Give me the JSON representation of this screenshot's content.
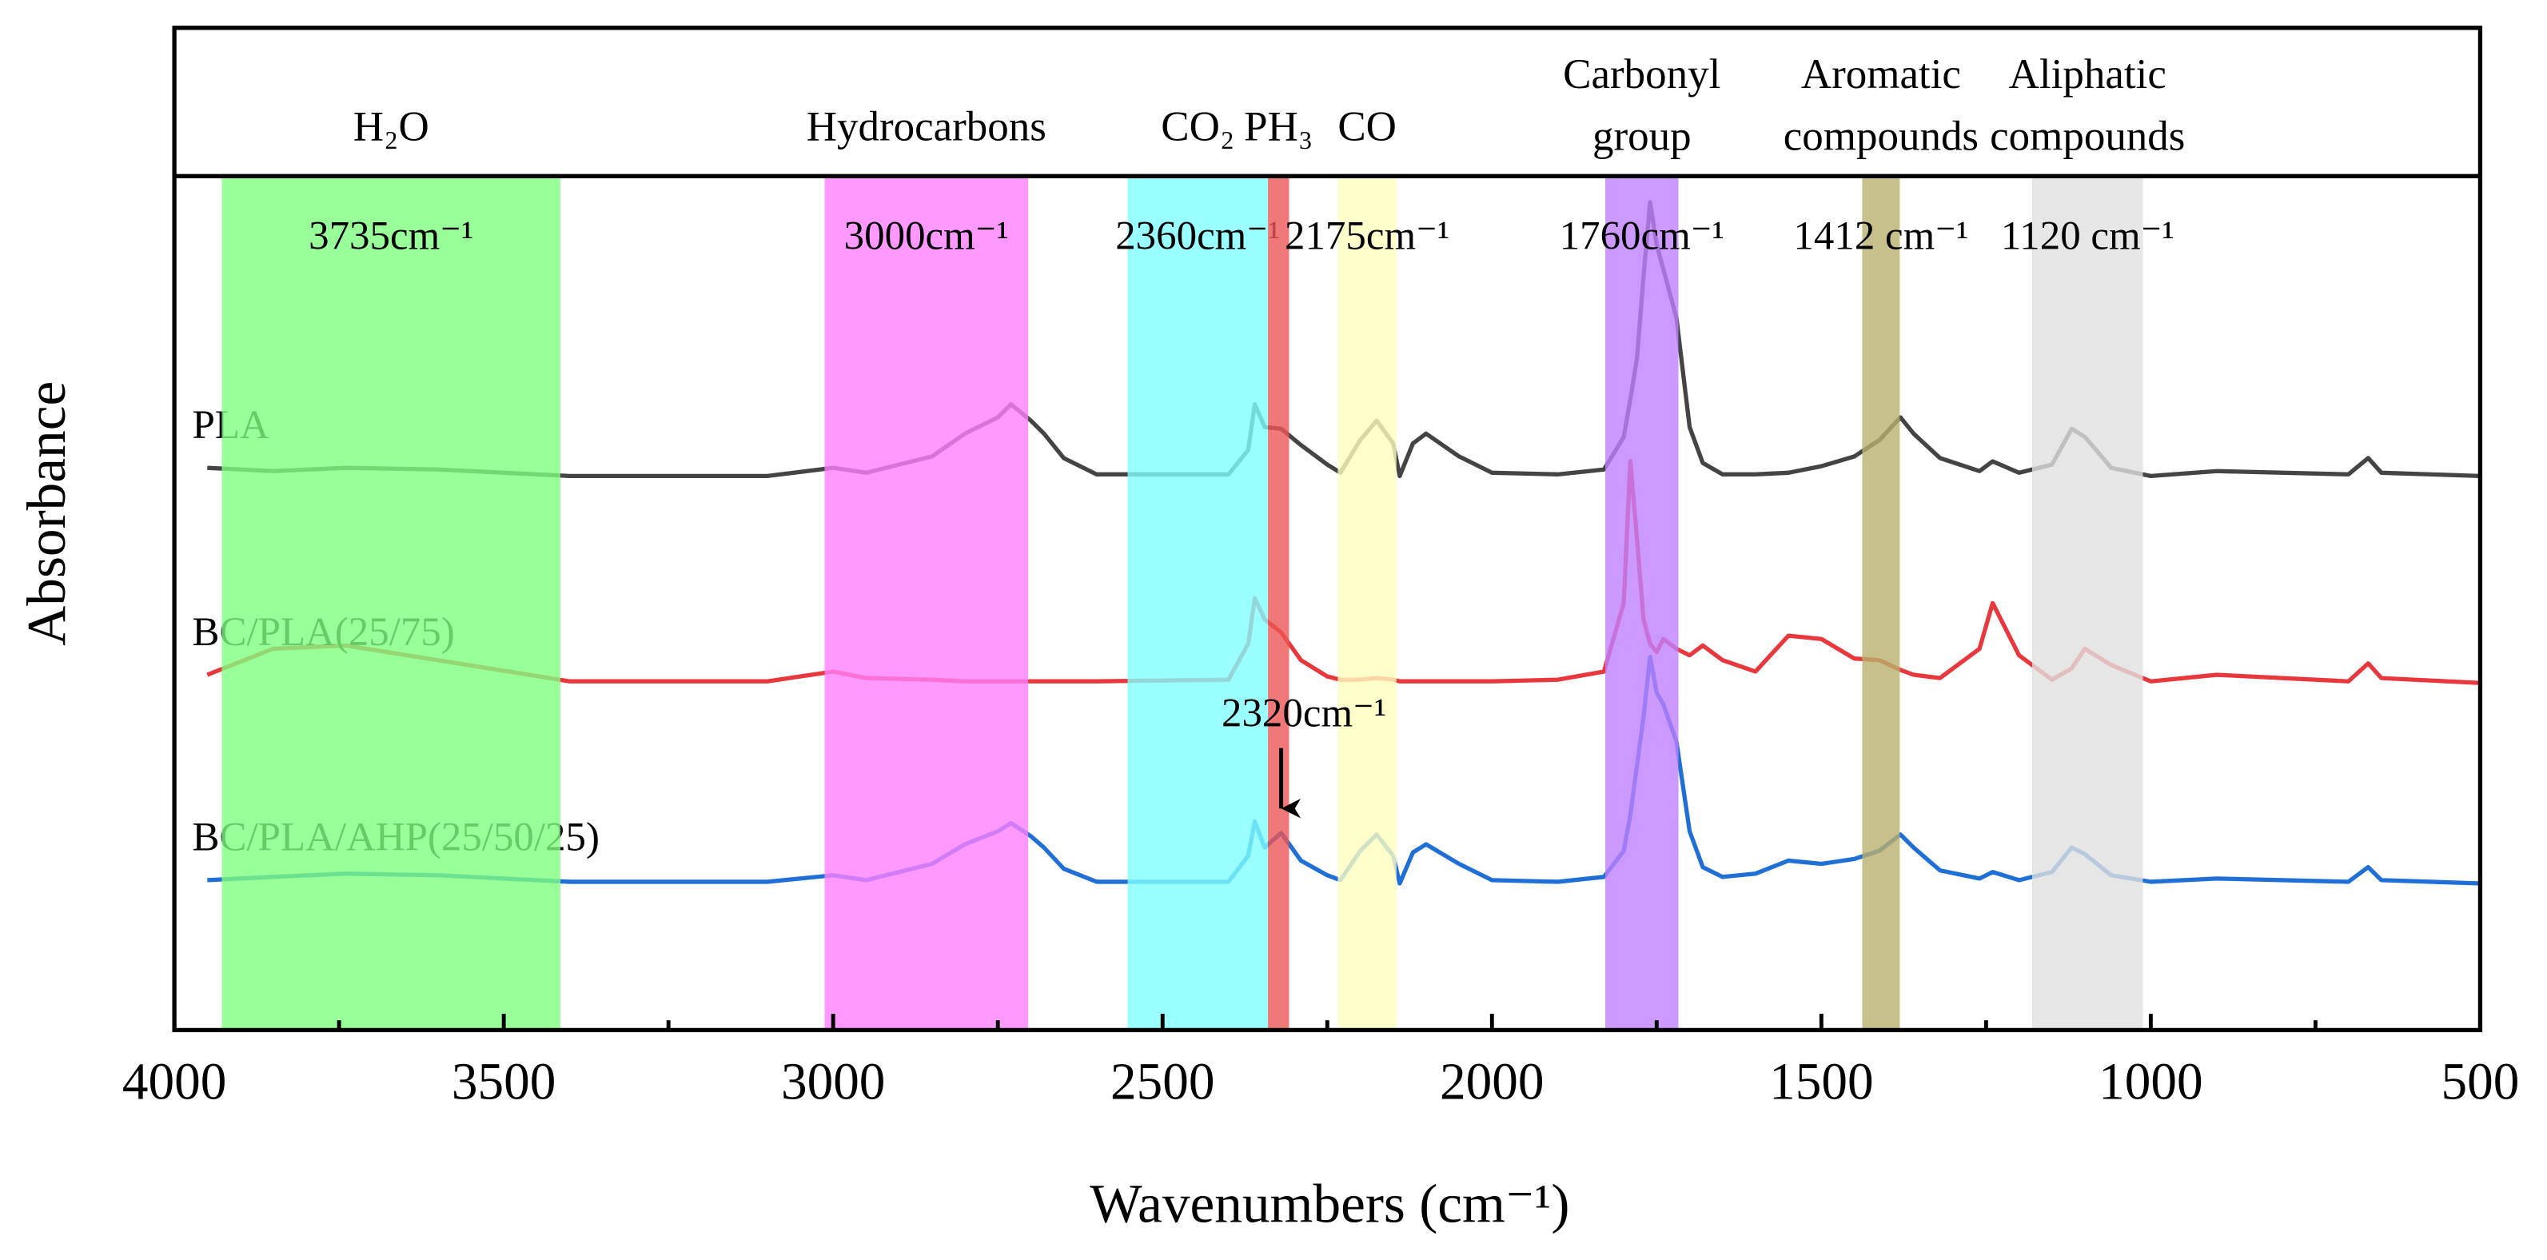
{
  "chart_data": {
    "type": "line",
    "x_label": "Wavenumbers (cm⁻¹)",
    "y_label": "Absorbance",
    "xlim": [
      4000,
      500
    ],
    "ylim": [
      0,
      524
    ],
    "xticks": [
      4000,
      3500,
      3000,
      2500,
      2000,
      1500,
      1000,
      500
    ],
    "xminor": [
      3750,
      3250,
      2750,
      2250,
      1750,
      1250,
      750
    ],
    "x": [
      3950,
      3850,
      3740,
      3600,
      3400,
      3100,
      3000,
      2950,
      2850,
      2800,
      2750,
      2730,
      2700,
      2680,
      2650,
      2600,
      2400,
      2370,
      2360,
      2345,
      2320,
      2290,
      2250,
      2230,
      2200,
      2175,
      2150,
      2140,
      2120,
      2100,
      2050,
      2000,
      1900,
      1830,
      1800,
      1790,
      1780,
      1770,
      1760,
      1750,
      1740,
      1720,
      1700,
      1680,
      1650,
      1600,
      1550,
      1500,
      1450,
      1412,
      1380,
      1360,
      1320,
      1260,
      1240,
      1200,
      1150,
      1120,
      1100,
      1060,
      1000,
      900,
      700,
      670,
      650,
      500
    ],
    "series": [
      {
        "name": "PLA",
        "color": "#444444",
        "values": [
          345,
          343,
          345,
          344,
          340,
          340,
          345,
          342,
          352,
          366,
          376,
          384,
          374,
          366,
          351,
          341,
          341,
          356,
          384,
          370,
          369,
          359,
          347,
          342,
          362,
          374,
          360,
          340,
          360,
          366,
          352,
          342,
          341,
          344,
          364,
          387,
          412,
          462,
          508,
          482,
          467,
          437,
          370,
          348,
          341,
          341,
          342,
          346,
          352,
          362,
          376,
          366,
          351,
          343,
          349,
          342,
          347,
          369,
          364,
          345,
          340,
          343,
          341,
          351,
          342,
          340
        ]
      },
      {
        "name": "BC/PLA(25/75)",
        "color": "#e8383d",
        "values": [
          218,
          234,
          236,
          227,
          214,
          214,
          220,
          216,
          215,
          214,
          214,
          214,
          214,
          214,
          214,
          214,
          215,
          237,
          265,
          252,
          244,
          227,
          217,
          215,
          215,
          216,
          215,
          214,
          214,
          214,
          214,
          214,
          215,
          220,
          262,
          349,
          302,
          252,
          237,
          232,
          240,
          234,
          230,
          236,
          227,
          220,
          242,
          240,
          228,
          227,
          221,
          218,
          216,
          234,
          262,
          230,
          215,
          222,
          234,
          224,
          214,
          218,
          214,
          225,
          216,
          213
        ]
      },
      {
        "name": "BC/PLA/AHP(25/50/25)",
        "color": "#1f6fd6",
        "values": [
          92,
          94,
          96,
          95,
          91,
          91,
          95,
          92,
          102,
          114,
          122,
          127,
          119,
          112,
          99,
          91,
          91,
          107,
          128,
          112,
          121,
          104,
          95,
          92,
          110,
          120,
          107,
          90,
          109,
          114,
          102,
          92,
          91,
          94,
          110,
          132,
          162,
          192,
          229,
          207,
          200,
          177,
          122,
          100,
          94,
          96,
          104,
          102,
          105,
          110,
          120,
          112,
          98,
          93,
          97,
          92,
          97,
          112,
          108,
          95,
          91,
          93,
          91,
          100,
          92,
          90
        ]
      }
    ],
    "bands": [
      {
        "label": [
          "H₂O"
        ],
        "peak": "3735cm⁻¹",
        "range": [
          3928,
          3414
        ],
        "color": "#7fff7f"
      },
      {
        "label": [
          "Hydrocarbons"
        ],
        "peak": "3000cm⁻¹",
        "range": [
          3013,
          2704
        ],
        "color": "#ff7fff"
      },
      {
        "label": [
          "CO₂"
        ],
        "peak": "2360cm⁻¹",
        "range": [
          2553,
          2340
        ],
        "color": "#7fffff"
      },
      {
        "label": [
          "PH₃"
        ],
        "range": [
          2340,
          2308
        ],
        "color": "#ec5656"
      },
      {
        "label": [
          "CO"
        ],
        "peak": "2175cm⁻¹",
        "range": [
          2234,
          2145
        ],
        "color": "#ffffbf"
      },
      {
        "label": [
          "Carbonyl",
          "group"
        ],
        "peak": "1760cm⁻¹",
        "range": [
          1828,
          1717
        ],
        "color": "#bf7fff"
      },
      {
        "label": [
          "Aromatic",
          "compounds"
        ],
        "peak": "1412 cm⁻¹",
        "range": [
          1438,
          1381
        ],
        "color": "#bab06d"
      },
      {
        "label": [
          "Aliphatic",
          "compounds"
        ],
        "peak": "1120 cm⁻¹",
        "range": [
          1180,
          1012
        ],
        "color": "#e0e0e0"
      }
    ],
    "annotation": {
      "text": "2320cm⁻¹"
    }
  }
}
